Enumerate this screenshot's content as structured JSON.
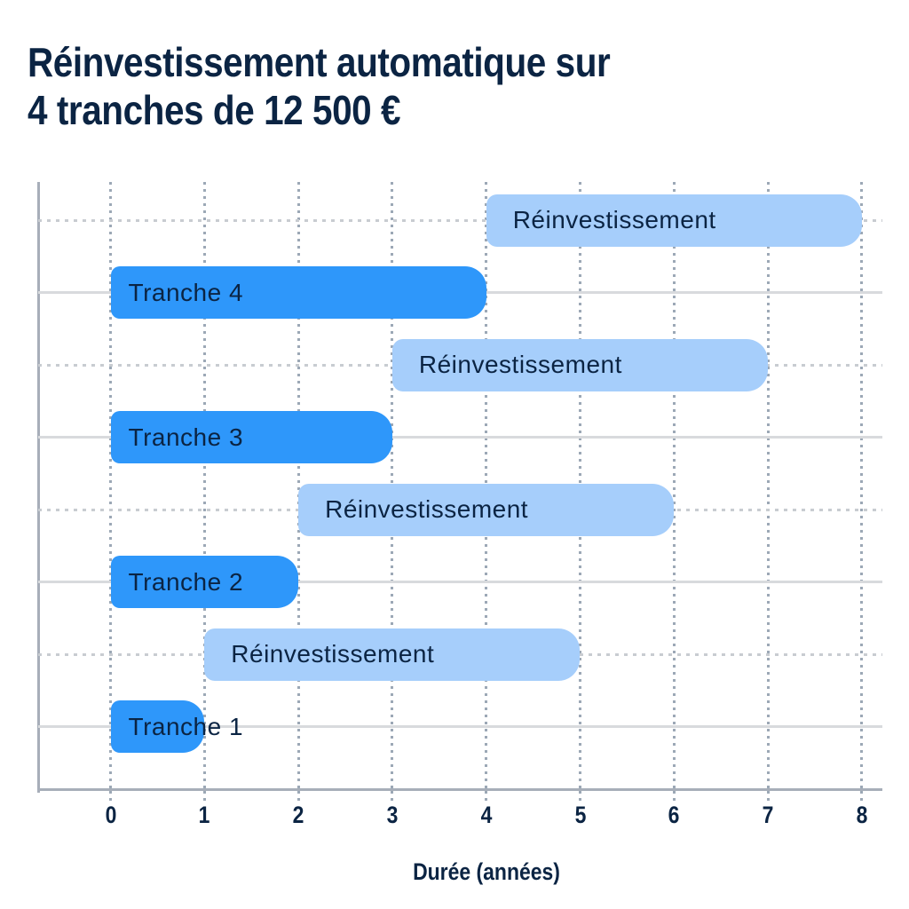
{
  "title": {
    "line1": "Réinvestissement automatique sur",
    "line2": "4 tranches de 12 500 €"
  },
  "chart_data": {
    "type": "bar",
    "orientation": "horizontal",
    "title": "Réinvestissement automatique sur 4 tranches de 12 500 €",
    "xlabel": "Durée (années)",
    "xlim": [
      0,
      8
    ],
    "xticks": [
      "0",
      "1",
      "2",
      "3",
      "4",
      "5",
      "6",
      "7",
      "8"
    ],
    "grid": true,
    "legend": false,
    "rows_bottom_to_top": [
      {
        "label": "Tranche 1",
        "series": "tranche",
        "start": 0,
        "end": 1
      },
      {
        "label": "Réinvestissement",
        "series": "reinvestissement",
        "start": 1,
        "end": 5
      },
      {
        "label": "Tranche 2",
        "series": "tranche",
        "start": 0,
        "end": 2
      },
      {
        "label": "Réinvestissement",
        "series": "reinvestissement",
        "start": 2,
        "end": 6
      },
      {
        "label": "Tranche 3",
        "series": "tranche",
        "start": 0,
        "end": 3
      },
      {
        "label": "Réinvestissement",
        "series": "reinvestissement",
        "start": 3,
        "end": 7
      },
      {
        "label": "Tranche 4",
        "series": "tranche",
        "start": 0,
        "end": 4
      },
      {
        "label": "Réinvestissement",
        "series": "reinvestissement",
        "start": 4,
        "end": 8
      }
    ],
    "colors": {
      "tranche": "#2E97FA",
      "reinvestissement": "#A6CEFB",
      "label_text": "#0B2443",
      "title_text": "#0B2443",
      "axis_line": "#A7AEB9"
    }
  }
}
